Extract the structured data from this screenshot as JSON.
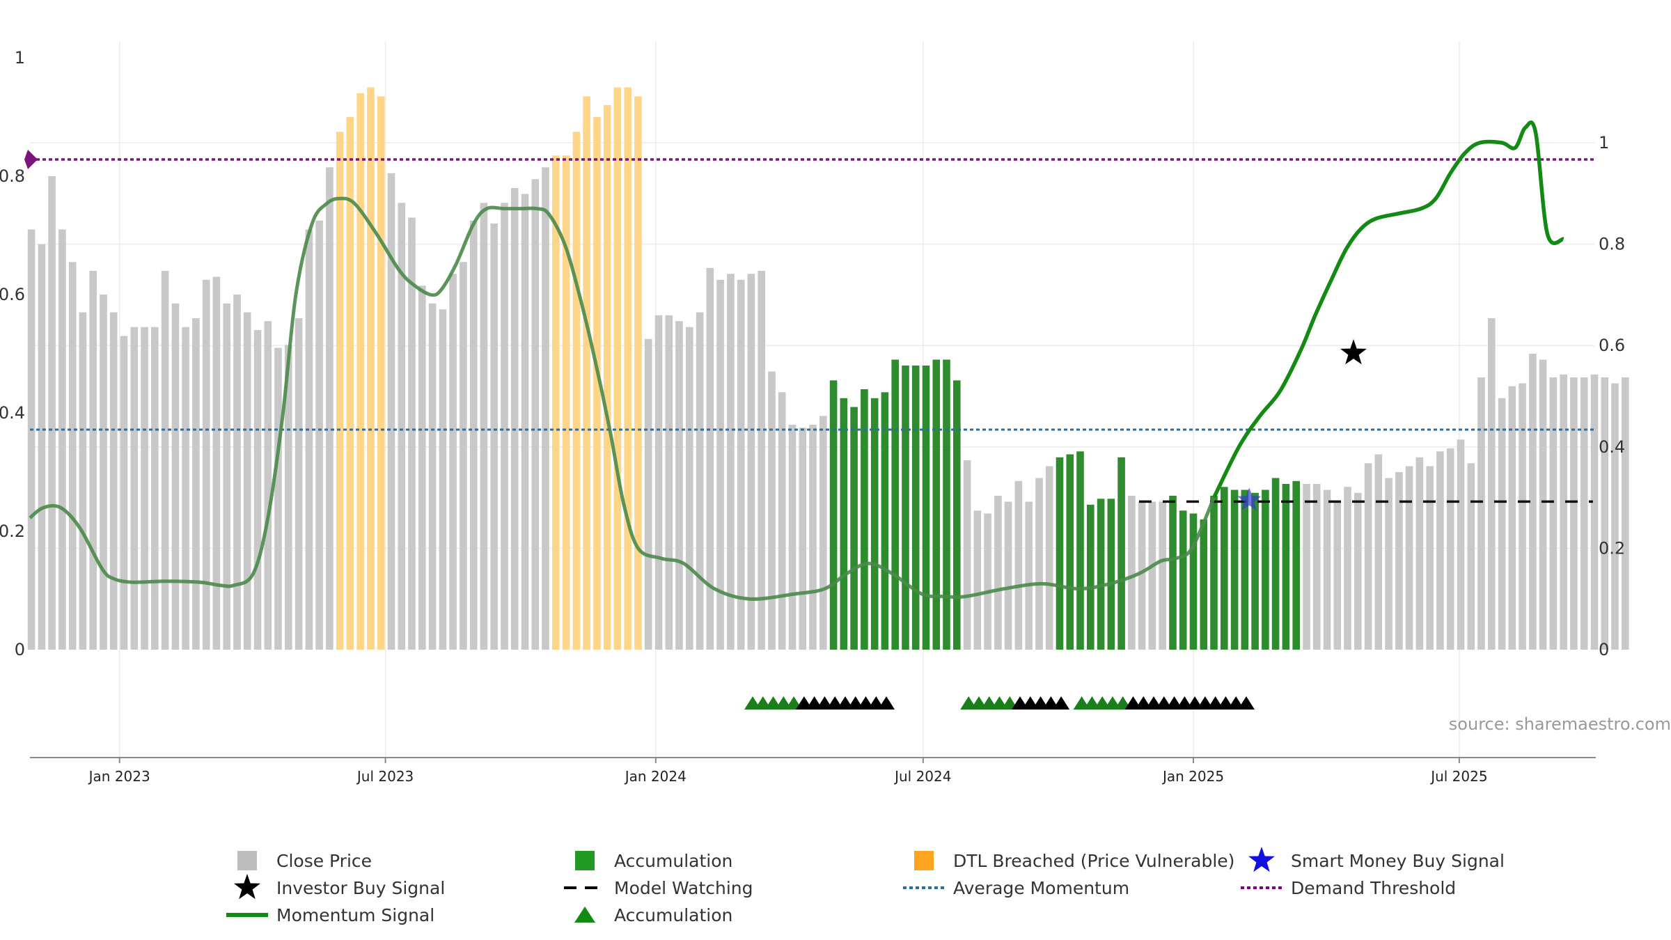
{
  "chart_data": {
    "type": "bar",
    "source_text": "source: sharemaestro.com",
    "x_start": "2022-11-01",
    "x_end": "2025-10-01",
    "x_tick_labels": [
      {
        "date": "2023-01-01",
        "label": "Jan 2023"
      },
      {
        "date": "2023-07-01",
        "label": "Jul 2023"
      },
      {
        "date": "2024-01-01",
        "label": "Jan 2024"
      },
      {
        "date": "2024-07-01",
        "label": "Jul 2024"
      },
      {
        "date": "2025-01-01",
        "label": "Jan 2025"
      },
      {
        "date": "2025-07-01",
        "label": "Jul 2025"
      }
    ],
    "y_left": {
      "ylim": [
        0,
        1
      ],
      "ticks": [
        "0",
        "0.2",
        "0.4",
        "0.6",
        "0.8",
        "1"
      ]
    },
    "y_right": {
      "ylim": [
        0,
        1
      ],
      "ticks": [
        "0",
        "0.2",
        "0.4",
        "0.6",
        "0.8",
        "1"
      ]
    },
    "grid": true,
    "colors": {
      "close_price": "#c8c8c8",
      "accumulation": "#2e8b2e",
      "dtl_breached": "#ffd58a",
      "momentum": "#138a13",
      "momentum_dim": "#4a8a4a",
      "average_momentum": "#2c6e9e",
      "demand_threshold": "#7a147a",
      "model_watching": "#111111",
      "smart_money": "#3a3ad8",
      "investor_buy": "#000000",
      "acc_triangle": "#1a7f1a",
      "black_triangle": "#000000"
    },
    "legend": {
      "placement": "bottom",
      "items": [
        {
          "label": "Close Price",
          "symbol": "square",
          "color": "#bdbdbd"
        },
        {
          "label": "Accumulation",
          "symbol": "square",
          "color": "#229922"
        },
        {
          "label": "DTL Breached (Price Vulnerable)",
          "symbol": "square",
          "color": "#ffa520"
        },
        {
          "label": "Smart Money Buy Signal",
          "symbol": "star",
          "color": "#1010e0"
        },
        {
          "label": "Investor Buy Signal",
          "symbol": "star",
          "color": "#000000"
        },
        {
          "label": "Model Watching",
          "symbol": "dash",
          "color": "#000000"
        },
        {
          "label": "Average Momentum",
          "symbol": "dotted",
          "color": "#2c6e9e"
        },
        {
          "label": "Demand Threshold",
          "symbol": "dotted",
          "color": "#800080"
        },
        {
          "label": "Momentum Signal",
          "symbol": "line",
          "color": "#138a13"
        },
        {
          "label": "Accumulation",
          "symbol": "triangle",
          "color": "#138a13"
        }
      ]
    },
    "series": [
      {
        "name": "Close Price",
        "axis": "left",
        "start": "2022-11-02",
        "step_days": 7,
        "values": [
          0.71,
          0.685,
          0.8,
          0.71,
          0.655,
          0.57,
          0.64,
          0.6,
          0.57,
          0.53,
          0.545,
          0.545,
          0.545,
          0.64,
          0.585,
          0.545,
          0.56,
          0.625,
          0.63,
          0.585,
          0.6,
          0.57,
          0.54,
          0.555,
          0.51,
          0.515,
          0.56,
          0.71,
          0.725,
          0.815,
          0.875,
          0.9,
          0.94,
          0.95,
          0.935,
          0.805,
          0.755,
          0.73,
          0.615,
          0.585,
          0.575,
          0.635,
          0.655,
          0.725,
          0.755,
          0.72,
          0.755,
          0.78,
          0.77,
          0.795,
          0.815,
          0.835,
          0.835,
          0.875,
          0.935,
          0.9,
          0.92,
          0.95,
          0.95,
          0.935,
          0.525,
          0.565,
          0.565,
          0.555,
          0.545,
          0.57,
          0.645,
          0.625,
          0.635,
          0.625,
          0.635,
          0.64,
          0.47,
          0.435,
          0.38,
          0.375,
          0.38,
          0.395,
          0.455,
          0.425,
          0.41,
          0.44,
          0.425,
          0.435,
          0.49,
          0.48,
          0.48,
          0.48,
          0.49,
          0.49,
          0.455,
          0.32,
          0.235,
          0.23,
          0.26,
          0.25,
          0.285,
          0.25,
          0.29,
          0.31,
          0.325,
          0.33,
          0.335,
          0.245,
          0.255,
          0.255,
          0.325,
          0.26,
          0.25,
          0.25,
          0.25,
          0.26,
          0.235,
          0.23,
          0.22,
          0.26,
          0.275,
          0.27,
          0.27,
          0.265,
          0.27,
          0.29,
          0.28,
          0.285,
          0.28,
          0.28,
          0.27,
          0.25,
          0.275,
          0.265,
          0.315,
          0.33,
          0.29,
          0.3,
          0.31,
          0.325,
          0.31,
          0.335,
          0.34,
          0.355,
          0.315,
          0.46,
          0.56,
          0.425,
          0.445,
          0.45,
          0.5,
          0.49,
          0.46,
          0.465,
          0.46,
          0.46,
          0.465,
          0.46,
          0.45,
          0.46
        ],
        "state_runs": [
          {
            "from": 0,
            "to": 29,
            "state": "Close Price"
          },
          {
            "from": 30,
            "to": 34,
            "state": "DTL Breached (Price Vulnerable)"
          },
          {
            "from": 35,
            "to": 50,
            "state": "Close Price"
          },
          {
            "from": 51,
            "to": 59,
            "state": "DTL Breached (Price Vulnerable)"
          },
          {
            "from": 60,
            "to": 77,
            "state": "Close Price"
          },
          {
            "from": 78,
            "to": 90,
            "state": "Accumulation"
          },
          {
            "from": 91,
            "to": 99,
            "state": "Close Price"
          },
          {
            "from": 100,
            "to": 106,
            "state": "Accumulation"
          },
          {
            "from": 107,
            "to": 110,
            "state": "Close Price"
          },
          {
            "from": 111,
            "to": 123,
            "state": "Accumulation"
          },
          {
            "from": 124,
            "to": 156,
            "state": "Close Price"
          }
        ]
      },
      {
        "name": "Momentum Signal",
        "axis": "right",
        "x": [
          "2022-11-01",
          "2022-11-10",
          "2022-11-22",
          "2022-12-05",
          "2022-12-20",
          "2022-12-28",
          "2023-01-10",
          "2023-02-01",
          "2023-02-25",
          "2023-03-10",
          "2023-03-20",
          "2023-04-02",
          "2023-04-12",
          "2023-04-22",
          "2023-05-01",
          "2023-05-12",
          "2023-05-22",
          "2023-05-31",
          "2023-06-10",
          "2023-06-25",
          "2023-07-10",
          "2023-07-20",
          "2023-08-01",
          "2023-08-08",
          "2023-08-18",
          "2023-08-30",
          "2023-09-08",
          "2023-09-20",
          "2023-10-01",
          "2023-10-12",
          "2023-10-20",
          "2023-10-31",
          "2023-11-10",
          "2023-11-20",
          "2023-12-01",
          "2023-12-10",
          "2023-12-20",
          "2024-01-05",
          "2024-01-20",
          "2024-02-10",
          "2024-03-05",
          "2024-04-05",
          "2024-04-25",
          "2024-05-10",
          "2024-05-25",
          "2024-06-10",
          "2024-06-30",
          "2024-07-15",
          "2024-07-30",
          "2024-08-25",
          "2024-09-20",
          "2024-10-15",
          "2024-11-05",
          "2024-11-25",
          "2024-12-10",
          "2024-12-20",
          "2024-12-31",
          "2025-01-15",
          "2025-02-01",
          "2025-02-15",
          "2025-03-01",
          "2025-03-15",
          "2025-03-25",
          "2025-04-05",
          "2025-04-15",
          "2025-04-25",
          "2025-05-05",
          "2025-05-20",
          "2025-06-05",
          "2025-06-15",
          "2025-06-25",
          "2025-07-05",
          "2025-07-15",
          "2025-07-30",
          "2025-08-08",
          "2025-08-15",
          "2025-08-22",
          "2025-08-30",
          "2025-09-10"
        ],
        "values": [
          0.26,
          0.28,
          0.28,
          0.24,
          0.16,
          0.14,
          0.133,
          0.135,
          0.133,
          0.127,
          0.127,
          0.15,
          0.26,
          0.46,
          0.7,
          0.84,
          0.88,
          0.89,
          0.88,
          0.82,
          0.75,
          0.72,
          0.7,
          0.71,
          0.76,
          0.84,
          0.87,
          0.87,
          0.87,
          0.87,
          0.86,
          0.8,
          0.7,
          0.58,
          0.43,
          0.29,
          0.2,
          0.18,
          0.17,
          0.12,
          0.1,
          0.11,
          0.12,
          0.15,
          0.17,
          0.15,
          0.11,
          0.105,
          0.105,
          0.12,
          0.13,
          0.12,
          0.13,
          0.15,
          0.175,
          0.18,
          0.2,
          0.3,
          0.4,
          0.46,
          0.51,
          0.59,
          0.66,
          0.73,
          0.79,
          0.83,
          0.85,
          0.86,
          0.87,
          0.89,
          0.94,
          0.98,
          1.0,
          1.0,
          0.99,
          1.03,
          1.02,
          0.82,
          0.81
        ]
      },
      {
        "name": "Average Momentum",
        "axis": "right",
        "values": [
          0.434
        ]
      },
      {
        "name": "Demand Threshold",
        "axis": "right",
        "values": [
          0.967
        ]
      },
      {
        "name": "Model Watching",
        "axis": "right",
        "x_range": [
          "2024-11-25",
          "2025-09-30"
        ],
        "values": [
          0.292
        ]
      },
      {
        "name": "Smart Money Buy Signal",
        "axis": "right",
        "points": [
          {
            "date": "2025-02-08",
            "value": 0.295
          }
        ]
      },
      {
        "name": "Investor Buy Signal",
        "axis": "right",
        "points": [
          {
            "date": "2025-04-20",
            "value": 0.585
          }
        ]
      },
      {
        "name": "Accumulation",
        "marker": "triangle",
        "groups": [
          {
            "green": [
              "2024-03-07",
              "2024-03-14",
              "2024-03-21",
              "2024-03-28",
              "2024-04-04"
            ],
            "black": [
              "2024-04-11",
              "2024-04-18",
              "2024-04-25",
              "2024-05-02",
              "2024-05-09",
              "2024-05-16",
              "2024-05-23",
              "2024-05-30",
              "2024-06-06"
            ]
          },
          {
            "green": [
              "2024-08-01",
              "2024-08-08",
              "2024-08-15",
              "2024-08-22",
              "2024-08-29"
            ],
            "black": [
              "2024-09-05",
              "2024-09-12",
              "2024-09-19",
              "2024-09-26",
              "2024-10-03"
            ]
          },
          {
            "green": [
              "2024-10-17",
              "2024-10-24",
              "2024-10-31",
              "2024-11-07",
              "2024-11-14"
            ],
            "black": [
              "2024-11-21",
              "2024-11-28",
              "2024-12-05",
              "2024-12-12",
              "2024-12-19",
              "2024-12-26",
              "2025-01-02",
              "2025-01-09",
              "2025-01-16",
              "2025-01-23",
              "2025-01-30",
              "2025-02-06"
            ]
          }
        ]
      }
    ]
  }
}
